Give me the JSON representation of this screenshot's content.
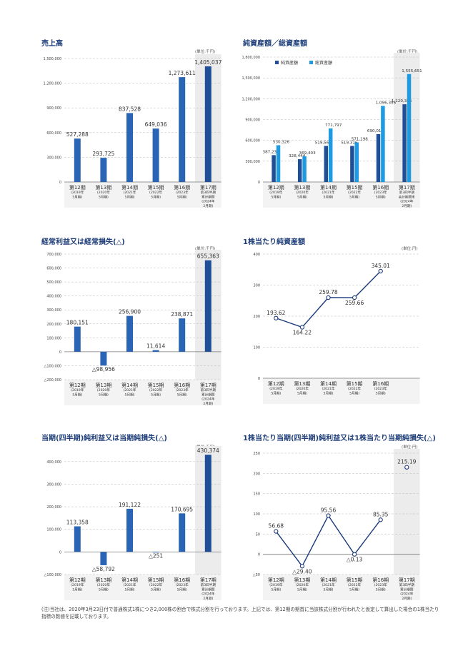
{
  "note": "(注)当社は、2020年3月23日付で普通株式1株につき2,000株の割合で株式分割を行っております。上記では、第12期の期首に当該株式分割が行われたと仮定して算出した場合の1株当たり指標の数値を記載しております。",
  "colors": {
    "title": "#1f3f7a",
    "bar_dark": "#1f4f97",
    "bar_light": "#1e9be0",
    "line": "#1b3a7a",
    "highlight": "#ececec",
    "grid": "#bbbbbb"
  },
  "chart_data": [
    {
      "type": "bar",
      "title": "売上高",
      "unit": "(単位:千円)",
      "categories": [
        [
          "第12期",
          "(2019年",
          "5月期)"
        ],
        [
          "第13期",
          "(2020年",
          "5月期)"
        ],
        [
          "第14期",
          "(2021年",
          "5月期)"
        ],
        [
          "第15期",
          "(2022年",
          "5月期)"
        ],
        [
          "第16期",
          "(2023年",
          "5月期)"
        ],
        [
          "第17期",
          "第3四半期",
          "累計期間",
          "(2024年",
          "2月期)"
        ]
      ],
      "values": [
        527288,
        293725,
        837528,
        649036,
        1273611,
        1405037
      ],
      "labels": [
        "527,288",
        "293,725",
        "837,528",
        "649,036",
        "1,273,611",
        "1,405,037"
      ],
      "yticks": [
        0,
        300000,
        600000,
        900000,
        1200000,
        1500000
      ],
      "ytick_labels": [
        "0",
        "300,000",
        "600,000",
        "900,000",
        "1,200,000",
        "1,500,000"
      ],
      "ylim": [
        0,
        1500000
      ],
      "highlight_last": true
    },
    {
      "type": "bar",
      "title": "純資産額／総資産額",
      "unit": "(単位:千円)",
      "categories": [
        [
          "第12期",
          "(2019年",
          "5月期)"
        ],
        [
          "第13期",
          "(2020年",
          "5月期)"
        ],
        [
          "第14期",
          "(2021年",
          "5月期)"
        ],
        [
          "第15期",
          "(2022年",
          "5月期)"
        ],
        [
          "第16期",
          "(2023年",
          "5月期)"
        ],
        [
          "第17期",
          "第3四半期",
          "会計期間末",
          "(2024年",
          "2月期)"
        ]
      ],
      "series": [
        {
          "name": "純資産額",
          "values": [
            387237,
            328444,
            519567,
            519316,
            690011,
            1120386
          ],
          "labels": [
            "387,237",
            "328,444",
            "519,567",
            "519,316",
            "690,011",
            "1,120,386"
          ]
        },
        {
          "name": "総資産額",
          "values": [
            530326,
            369403,
            771797,
            571198,
            1096356,
            1555651
          ],
          "labels": [
            "530,326",
            "369,403",
            "771,797",
            "571,198",
            "1,096,356",
            "1,555,651"
          ]
        }
      ],
      "yticks": [
        0,
        300000,
        600000,
        900000,
        1200000,
        1500000,
        1800000
      ],
      "ytick_labels": [
        "0",
        "300,000",
        "600,000",
        "900,000",
        "1,200,000",
        "1,500,000",
        "1,800,000"
      ],
      "ylim": [
        0,
        1800000
      ],
      "legend": "top-left",
      "highlight_last": true
    },
    {
      "type": "bar",
      "title": "経常利益又は経常損失(△)",
      "unit": "(単位:千円)",
      "categories": [
        [
          "第12期",
          "(2019年",
          "5月期)"
        ],
        [
          "第13期",
          "(2020年",
          "5月期)"
        ],
        [
          "第14期",
          "(2021年",
          "5月期)"
        ],
        [
          "第15期",
          "(2022年",
          "5月期)"
        ],
        [
          "第16期",
          "(2023年",
          "5月期)"
        ],
        [
          "第17期",
          "第3四半期",
          "累計期間",
          "(2024年",
          "2月期)"
        ]
      ],
      "values": [
        180151,
        -98956,
        256900,
        11614,
        238871,
        655363
      ],
      "labels": [
        "180,151",
        "△98,956",
        "256,900",
        "11,614",
        "238,871",
        "655,363"
      ],
      "yticks": [
        -200000,
        -100000,
        0,
        100000,
        200000,
        300000,
        400000,
        500000,
        600000,
        700000
      ],
      "ytick_labels": [
        "△200,000",
        "△100,000",
        "0",
        "100,000",
        "200,000",
        "300,000",
        "400,000",
        "500,000",
        "600,000",
        "700,000"
      ],
      "ylim": [
        -200000,
        700000
      ],
      "highlight_last": true
    },
    {
      "type": "line",
      "title": "1株当たり純資産額",
      "unit": "(単位:円)",
      "categories": [
        [
          "第12期",
          "(2019年",
          "5月期)"
        ],
        [
          "第13期",
          "(2020年",
          "5月期)"
        ],
        [
          "第14期",
          "(2021年",
          "5月期)"
        ],
        [
          "第15期",
          "(2022年",
          "5月期)"
        ],
        [
          "第16期",
          "(2023年",
          "5月期)"
        ]
      ],
      "values": [
        193.62,
        164.22,
        259.78,
        259.66,
        345.01
      ],
      "labels": [
        "193.62",
        "164.22",
        "259.78",
        "259.66",
        "345.01"
      ],
      "yticks": [
        0,
        100,
        200,
        300,
        400
      ],
      "ytick_labels": [
        "0",
        "100",
        "200",
        "300",
        "400"
      ],
      "ylim": [
        0,
        400
      ],
      "highlight_last": false
    },
    {
      "type": "bar",
      "title": "当期(四半期)純利益又は当期純損失(△)",
      "unit": "(単位:千円)",
      "categories": [
        [
          "第12期",
          "(2019年",
          "5月期)"
        ],
        [
          "第13期",
          "(2020年",
          "5月期)"
        ],
        [
          "第14期",
          "(2021年",
          "5月期)"
        ],
        [
          "第15期",
          "(2022年",
          "5月期)"
        ],
        [
          "第16期",
          "(2023年",
          "5月期)"
        ],
        [
          "第17期",
          "第3四半期",
          "累計期間",
          "(2024年",
          "2月期)"
        ]
      ],
      "values": [
        113358,
        -58792,
        191122,
        -251,
        170695,
        430374
      ],
      "labels": [
        "113,358",
        "△58,792",
        "191,122",
        "△251",
        "170,695",
        "430,374"
      ],
      "yticks": [
        -100000,
        0,
        100000,
        200000,
        300000,
        400000
      ],
      "ytick_labels": [
        "△100,000",
        "0",
        "100,000",
        "200,000",
        "300,000",
        "400,000"
      ],
      "ylim": [
        -100000,
        450000
      ],
      "highlight_last": true
    },
    {
      "type": "line",
      "title": "1株当たり当期(四半期)純利益又は1株当たり当期純損失(△)",
      "unit": "(単位:円)",
      "categories": [
        [
          "第12期",
          "(2019年",
          "5月期)"
        ],
        [
          "第13期",
          "(2020年",
          "5月期)"
        ],
        [
          "第14期",
          "(2021年",
          "5月期)"
        ],
        [
          "第15期",
          "(2022年",
          "5月期)"
        ],
        [
          "第16期",
          "(2023年",
          "5月期)"
        ],
        [
          "第17期",
          "第3四半期",
          "累計期間",
          "(2024年",
          "2月期)"
        ]
      ],
      "values": [
        56.68,
        -29.4,
        95.56,
        -0.13,
        85.35,
        215.19
      ],
      "labels": [
        "56.68",
        "△29.40",
        "95.56",
        "△0.13",
        "85.35",
        "215.19"
      ],
      "yticks": [
        -50,
        0,
        50,
        100,
        150,
        200,
        250
      ],
      "ytick_labels": [
        "△50",
        "0",
        "50",
        "100",
        "150",
        "200",
        "250"
      ],
      "ylim": [
        -50,
        250
      ],
      "connect_upto": 5,
      "highlight_last": true
    }
  ]
}
